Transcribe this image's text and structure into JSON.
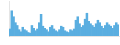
{
  "chart_data": {
    "type": "bar",
    "values": [
      20,
      72,
      55,
      38,
      30,
      18,
      12,
      25,
      18,
      15,
      10,
      8,
      30,
      22,
      15,
      20,
      38,
      62,
      28,
      22,
      18,
      12,
      25,
      30,
      20,
      15,
      12,
      18,
      28,
      25,
      15,
      12,
      10,
      18,
      15,
      20,
      45,
      55,
      35,
      25,
      30,
      48,
      65,
      42,
      35,
      30,
      25,
      35,
      45,
      38,
      28,
      22,
      30,
      38,
      32,
      28,
      22,
      30,
      38,
      32
    ],
    "color": "#5aaee0",
    "ylim": [
      0,
      100
    ],
    "grid": false,
    "tick_labels": false
  }
}
